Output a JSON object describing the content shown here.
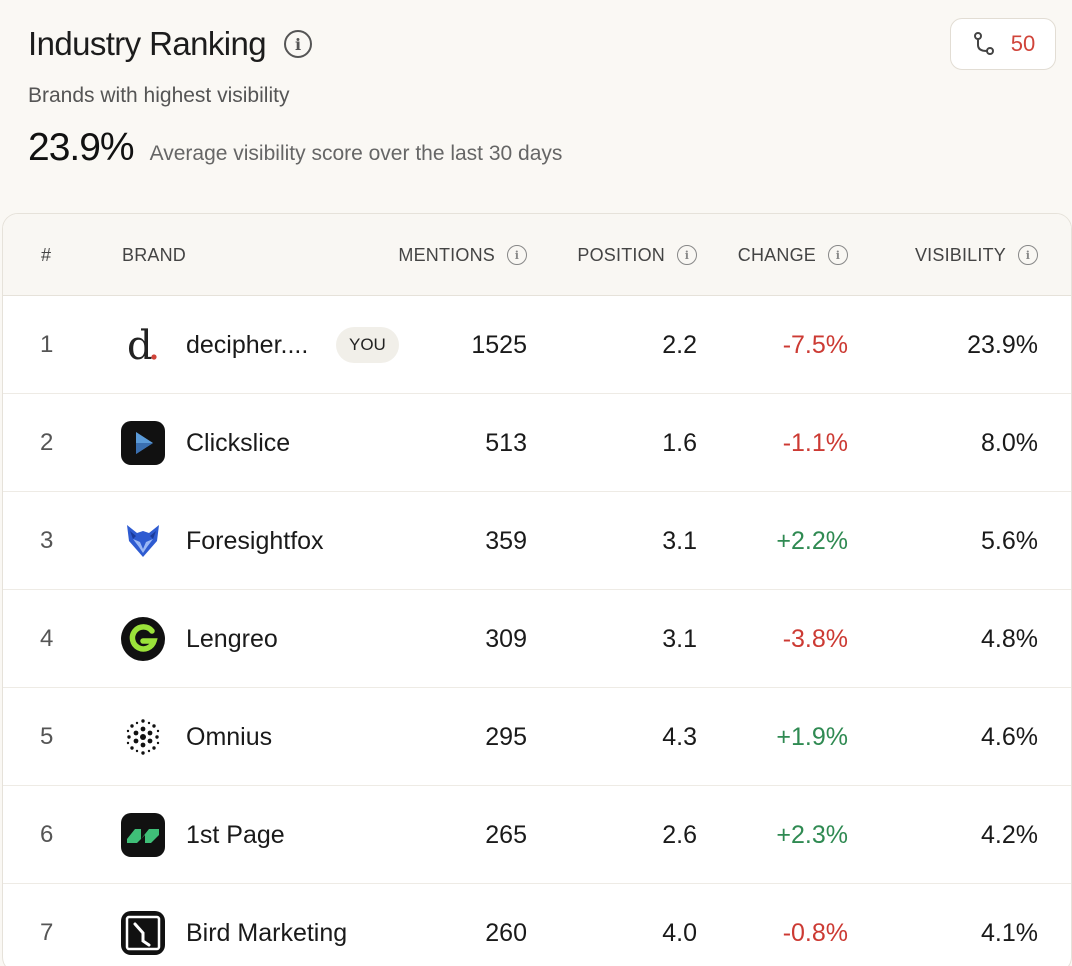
{
  "header": {
    "title": "Industry Ranking",
    "subtitle": "Brands with highest visibility",
    "score": "23.9%",
    "score_desc": "Average visibility score over the last 30 days",
    "badge_count": "50"
  },
  "table": {
    "columns": {
      "rank": "#",
      "brand": "BRAND",
      "mentions": "MENTIONS",
      "position": "POSITION",
      "change": "CHANGE",
      "visibility": "VISIBILITY"
    },
    "you_label": "YOU",
    "rows": [
      {
        "rank": "1",
        "name": "decipher....",
        "mentions": "1525",
        "position": "2.2",
        "change": "-7.5%",
        "trend": "neg",
        "visibility": "23.9%",
        "logo": "decipher-logo",
        "you": true
      },
      {
        "rank": "2",
        "name": "Clickslice",
        "mentions": "513",
        "position": "1.6",
        "change": "-1.1%",
        "trend": "neg",
        "visibility": "8.0%",
        "logo": "clickslice-logo"
      },
      {
        "rank": "3",
        "name": "Foresightfox",
        "mentions": "359",
        "position": "3.1",
        "change": "+2.2%",
        "trend": "pos",
        "visibility": "5.6%",
        "logo": "foresightfox-logo"
      },
      {
        "rank": "4",
        "name": "Lengreo",
        "mentions": "309",
        "position": "3.1",
        "change": "-3.8%",
        "trend": "neg",
        "visibility": "4.8%",
        "logo": "lengreo-logo"
      },
      {
        "rank": "5",
        "name": "Omnius",
        "mentions": "295",
        "position": "4.3",
        "change": "+1.9%",
        "trend": "pos",
        "visibility": "4.6%",
        "logo": "omnius-logo"
      },
      {
        "rank": "6",
        "name": "1st Page",
        "mentions": "265",
        "position": "2.6",
        "change": "+2.3%",
        "trend": "pos",
        "visibility": "4.2%",
        "logo": "1stpage-logo"
      },
      {
        "rank": "7",
        "name": "Bird Marketing",
        "mentions": "260",
        "position": "4.0",
        "change": "-0.8%",
        "trend": "neg",
        "visibility": "4.1%",
        "logo": "bird-marketing-logo"
      }
    ]
  },
  "colors": {
    "negative": "#cc3a33",
    "positive": "#2f8a52",
    "badge": "#d0443a"
  }
}
